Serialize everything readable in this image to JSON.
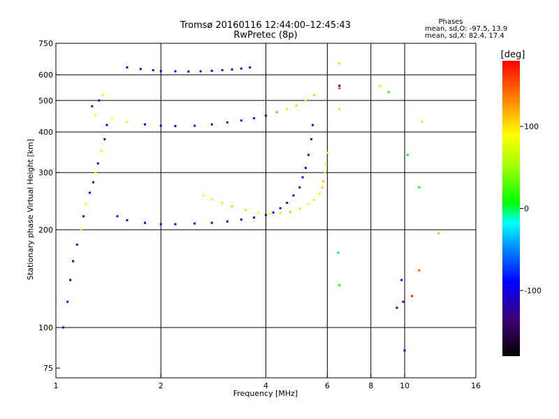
{
  "title_line1": "Tromsø 20160116 12:44:00–12:45:43",
  "title_line2": "RwPretec (8p)",
  "phases": {
    "heading": "Phases",
    "o_line": "mean, sd,O: -97.5, 13.9",
    "x_line": "mean, sd,X: 82.4, 17.4"
  },
  "colorbar": {
    "unit": "[deg]",
    "ticks": [
      {
        "value": 100,
        "label": "100"
      },
      {
        "value": 0,
        "label": "0"
      },
      {
        "value": -100,
        "label": "-100"
      }
    ],
    "range": [
      -180,
      180
    ]
  },
  "chart_data": {
    "type": "scatter",
    "xlabel": "Frequency [MHz]",
    "ylabel": "Stationary phase Virtual Height [km]",
    "x_scale": "log",
    "y_scale": "log",
    "xlim": [
      1,
      16
    ],
    "ylim": [
      70,
      750
    ],
    "x_ticks": [
      {
        "value": 1,
        "label": "1"
      },
      {
        "value": 2,
        "label": "2"
      },
      {
        "value": 4,
        "label": "4"
      },
      {
        "value": 6,
        "label": "6"
      },
      {
        "value": 8,
        "label": "8"
      },
      {
        "value": 10,
        "label": "10"
      },
      {
        "value": 16,
        "label": "16"
      }
    ],
    "y_ticks": [
      {
        "value": 75,
        "label": "75"
      },
      {
        "value": 100,
        "label": "100"
      },
      {
        "value": 200,
        "label": "200"
      },
      {
        "value": 300,
        "label": "300"
      },
      {
        "value": 400,
        "label": "400"
      },
      {
        "value": 500,
        "label": "500"
      },
      {
        "value": 600,
        "label": "600"
      },
      {
        "value": 750,
        "label": "750"
      }
    ],
    "x_grid": [
      2,
      4,
      6,
      8,
      10
    ],
    "y_grid": [
      100,
      200,
      300,
      400,
      500,
      600
    ],
    "color_scale": "phase_deg",
    "series": [
      {
        "x": [
          1.6,
          1.75,
          1.9,
          2.0,
          2.2,
          2.4,
          2.6,
          2.8,
          3.0,
          3.2,
          3.4,
          3.6
        ],
        "y": [
          632,
          625,
          620,
          616,
          615,
          614,
          615,
          617,
          620,
          623,
          627,
          632
        ],
        "phase": [
          -95,
          -100,
          -98,
          -102,
          -96,
          -94,
          -99,
          -97,
          -103,
          -95,
          -100,
          -105
        ]
      },
      {
        "x": [
          1.45,
          1.6,
          1.8,
          2.0,
          2.2,
          2.5,
          2.8,
          3.1,
          3.4,
          3.7,
          4.0,
          4.3,
          4.6,
          4.9,
          5.2,
          5.5
        ],
        "y": [
          440,
          430,
          422,
          418,
          417,
          418,
          422,
          428,
          434,
          441,
          449,
          460,
          470,
          482,
          500,
          520
        ],
        "phase": [
          90,
          80,
          -95,
          -105,
          -100,
          -98,
          -110,
          -120,
          -115,
          -100,
          -95,
          20,
          100,
          105,
          95,
          110
        ]
      },
      {
        "x": [
          5.45,
          5.4,
          5.3,
          5.2,
          5.1,
          5.0,
          4.8,
          4.6,
          4.4,
          4.2,
          4.0,
          3.7,
          3.4,
          3.1,
          2.8,
          2.5,
          2.2,
          2.0,
          1.8,
          1.6,
          1.5
        ],
        "y": [
          420,
          380,
          340,
          310,
          290,
          270,
          255,
          242,
          233,
          226,
          222,
          218,
          215,
          212,
          210,
          209,
          208,
          208,
          210,
          214,
          220
        ],
        "phase": [
          -100,
          -98,
          -102,
          -96,
          -99,
          -101,
          -97,
          -100,
          -95,
          -103,
          -98,
          -110,
          -120,
          -125,
          -115,
          -100,
          -98,
          -104,
          -96,
          -100,
          -95
        ]
      },
      {
        "x": [
          6.0,
          5.95,
          5.9,
          5.85,
          5.8,
          5.7,
          5.5,
          5.3,
          5.0,
          4.7,
          4.4,
          4.1,
          3.8,
          3.5,
          3.2,
          3.0,
          2.8,
          2.65
        ],
        "y": [
          345,
          320,
          300,
          282,
          270,
          258,
          247,
          240,
          232,
          227,
          225,
          224,
          226,
          230,
          236,
          242,
          248,
          255
        ],
        "phase": [
          80,
          95,
          100,
          110,
          105,
          100,
          95,
          90,
          100,
          110,
          95,
          85,
          90,
          100,
          105,
          95,
          85,
          90
        ]
      },
      {
        "x": [
          1.05,
          1.08,
          1.1,
          1.12,
          1.15,
          1.18,
          1.2,
          1.22,
          1.25,
          1.28,
          1.3,
          1.32,
          1.35,
          1.38,
          1.4,
          1.3,
          1.27,
          1.33,
          1.36
        ],
        "y": [
          100,
          120,
          140,
          160,
          180,
          200,
          220,
          240,
          260,
          280,
          300,
          320,
          350,
          380,
          420,
          450,
          480,
          500,
          520
        ],
        "phase": [
          -100,
          -95,
          -105,
          -98,
          -102,
          60,
          -100,
          90,
          -97,
          -103,
          85,
          -99,
          100,
          -96,
          -101,
          95,
          -100,
          -98,
          70
        ]
      },
      {
        "x": [
          6.5,
          6.5,
          6.5,
          6.5,
          6.45,
          6.5,
          9.8,
          9.9,
          10.0,
          9.5,
          10.5,
          11.0,
          11.2,
          11.0,
          12.5,
          8.5,
          9.0,
          10.2
        ],
        "y": [
          650,
          555,
          545,
          470,
          170,
          135,
          140,
          120,
          85,
          115,
          125,
          150,
          430,
          270,
          195,
          555,
          530,
          340
        ],
        "phase": [
          100,
          -100,
          150,
          100,
          0,
          10,
          -110,
          -120,
          -100,
          -140,
          170,
          150,
          100,
          10,
          110,
          100,
          20,
          10
        ]
      }
    ]
  }
}
